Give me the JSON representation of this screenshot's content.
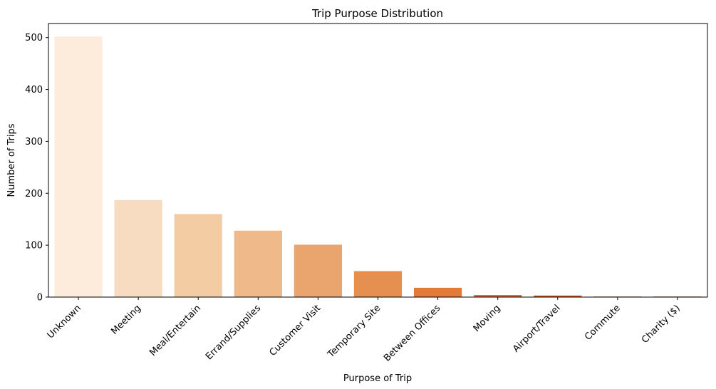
{
  "chart_data": {
    "type": "bar",
    "title": "Trip Purpose Distribution",
    "xlabel": "Purpose of Trip",
    "ylabel": "Number of Trips",
    "categories": [
      "Unknown",
      "Meeting",
      "Meal/Entertain",
      "Errand/Supplies",
      "Customer Visit",
      "Temporary Site",
      "Between Offices",
      "Moving",
      "Airport/Travel",
      "Commute",
      "Charity ($)"
    ],
    "values": [
      502,
      187,
      160,
      128,
      101,
      50,
      18,
      4,
      3,
      1,
      1
    ],
    "colors": [
      "#fdebdc",
      "#f8dcc2",
      "#f4cca4",
      "#efb98a",
      "#eaa46e",
      "#e58f50",
      "#e17b37",
      "#d9692a",
      "#c75a1f",
      "#b24d17",
      "#a04512"
    ],
    "ylim": [
      0,
      527
    ],
    "yticks": [
      0,
      100,
      200,
      300,
      400,
      500
    ],
    "grid": false,
    "legend": "none"
  }
}
